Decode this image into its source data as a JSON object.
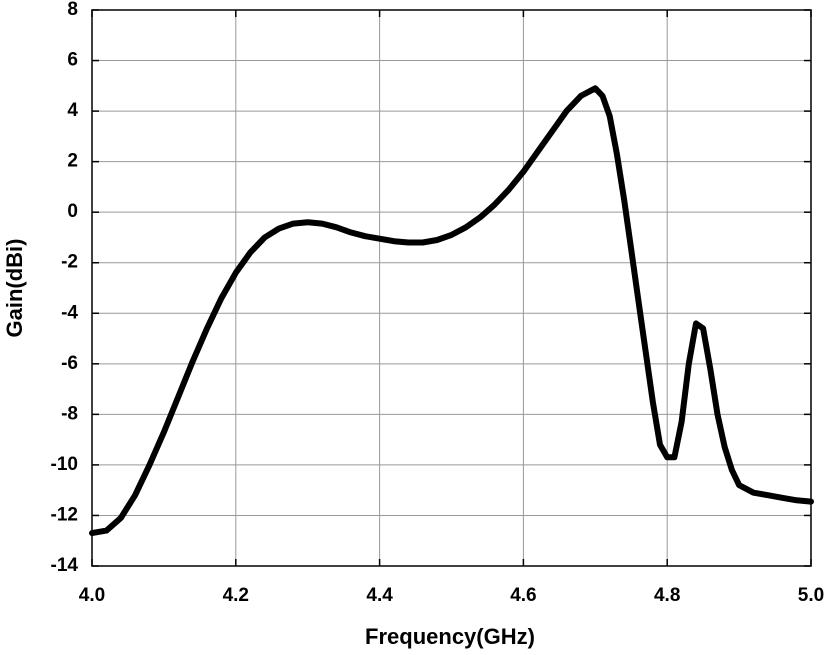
{
  "chart_data": {
    "type": "line",
    "x_label": "Frequency(GHz)",
    "y_label": "Gain(dBi)",
    "xlim": [
      4.0,
      5.0
    ],
    "ylim": [
      -14,
      8
    ],
    "xticks": [
      {
        "value": 4.0,
        "label": "4.0"
      },
      4.2,
      4.4,
      4.6,
      4.8,
      {
        "value": 5.0,
        "label": "5.0"
      }
    ],
    "yticks": [
      -14,
      -12,
      -10,
      -8,
      -6,
      -4,
      -2,
      0,
      2,
      4,
      6,
      8
    ],
    "grid": true,
    "series": [
      {
        "color": "#000000",
        "x": [
          4.0,
          4.02,
          4.04,
          4.06,
          4.08,
          4.1,
          4.12,
          4.14,
          4.16,
          4.18,
          4.2,
          4.22,
          4.24,
          4.26,
          4.28,
          4.3,
          4.32,
          4.34,
          4.36,
          4.38,
          4.4,
          4.42,
          4.44,
          4.46,
          4.48,
          4.5,
          4.52,
          4.54,
          4.56,
          4.58,
          4.6,
          4.62,
          4.64,
          4.66,
          4.68,
          4.7,
          4.71,
          4.72,
          4.73,
          4.74,
          4.75,
          4.76,
          4.77,
          4.78,
          4.79,
          4.8,
          4.81,
          4.82,
          4.83,
          4.84,
          4.85,
          4.86,
          4.87,
          4.88,
          4.89,
          4.9,
          4.92,
          4.94,
          4.96,
          4.98,
          5.0
        ],
        "values": [
          -12.7,
          -12.6,
          -12.1,
          -11.2,
          -10,
          -8.7,
          -7.3,
          -5.9,
          -4.6,
          -3.4,
          -2.4,
          -1.6,
          -1.0,
          -0.65,
          -0.45,
          -0.4,
          -0.45,
          -0.6,
          -0.8,
          -0.95,
          -1.05,
          -1.15,
          -1.2,
          -1.2,
          -1.1,
          -0.9,
          -0.6,
          -0.2,
          0.3,
          0.9,
          1.6,
          2.4,
          3.2,
          4.0,
          4.6,
          4.9,
          4.6,
          3.8,
          2.3,
          0.5,
          -1.5,
          -3.5,
          -5.5,
          -7.5,
          -9.2,
          -9.7,
          -9.7,
          -8.3,
          -6,
          -4.4,
          -4.6,
          -6.2,
          -8,
          -9.3,
          -10.2,
          -10.8,
          -11.1,
          -11.2,
          -11.3,
          -11.4,
          -11.45
        ]
      }
    ]
  }
}
